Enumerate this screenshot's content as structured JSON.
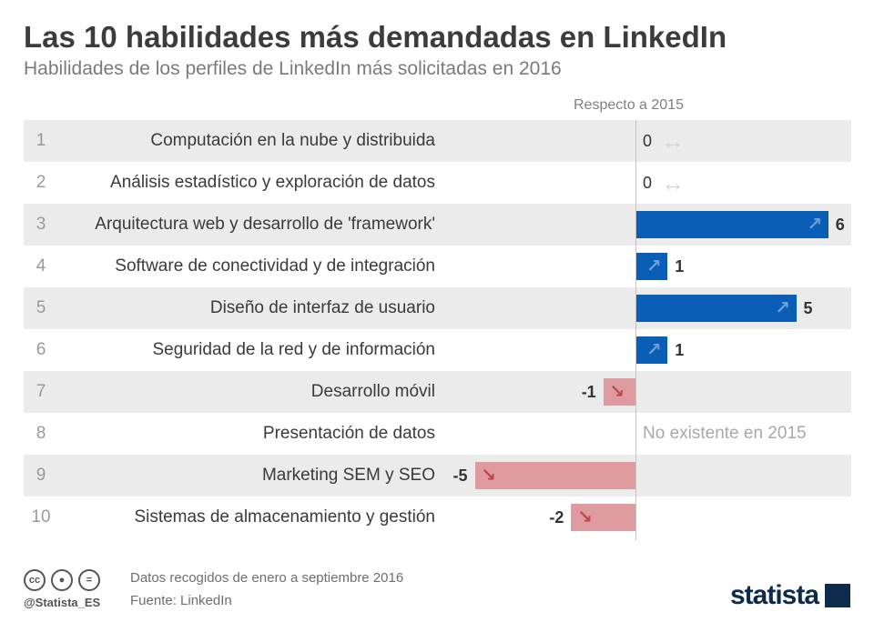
{
  "header": {
    "title": "Las 10 habilidades más demandadas en LinkedIn",
    "subtitle": "Habilidades de los perfiles de LinkedIn más solicitadas en 2016",
    "column_header": "Respecto a 2015"
  },
  "chart_data": {
    "type": "bar",
    "title": "Las 10 habilidades más demandadas en LinkedIn",
    "subtitle": "Habilidades de los perfiles de LinkedIn más solicitadas en 2016",
    "value_header": "Respecto a 2015",
    "categories": [
      "Computación en la nube y distribuida",
      "Análisis estadístico y exploración de datos",
      "Arquitectura web y desarrollo de 'framework'",
      "Software de conectividad y de integración",
      "Diseño de interfaz de usuario",
      "Seguridad de la red y de información",
      "Desarrollo móvil",
      "Presentación de datos",
      "Marketing SEM y SEO",
      "Sistemas de almacenamiento y gestión"
    ],
    "ranks": [
      "1",
      "2",
      "3",
      "4",
      "5",
      "6",
      "7",
      "8",
      "9",
      "10"
    ],
    "values": [
      0,
      0,
      6,
      1,
      5,
      1,
      -1,
      null,
      -5,
      -2
    ],
    "value_labels": [
      "0",
      "0",
      "6",
      "1",
      "5",
      "1",
      "-1",
      "",
      "-5",
      "-2"
    ],
    "na_label": "No existente en 2015",
    "xlim": [
      -6,
      6
    ],
    "colors": {
      "increase": "#0b5eb5",
      "decrease": "#de9a9f",
      "unchanged": "#d6d6d6"
    }
  },
  "footer": {
    "handle": "@Statista_ES",
    "note": "Datos recogidos de enero a septiembre 2016",
    "source": "Fuente: LinkedIn",
    "brand": "statista",
    "license_icons": [
      "cc-icon",
      "by-icon",
      "nd-icon"
    ]
  }
}
